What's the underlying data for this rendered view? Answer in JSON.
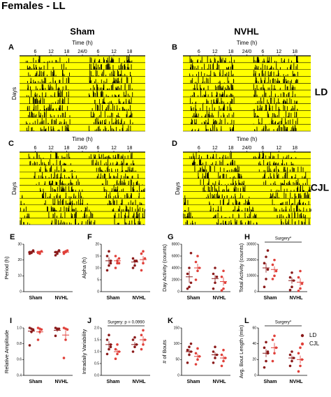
{
  "figure_title": "Females - LL",
  "columns": [
    "Sham",
    "NVHL"
  ],
  "rows": [
    "LD",
    "CJL"
  ],
  "actograms": [
    {
      "letter": "A",
      "xlabel": "Time (h)",
      "ylabel": "Days",
      "ticks": [
        "6",
        "12",
        "18",
        "24/0",
        "6",
        "12",
        "18"
      ]
    },
    {
      "letter": "B",
      "xlabel": "Time (h)",
      "ticks": [
        "6",
        "12",
        "18",
        "24/0",
        "6",
        "12",
        "18"
      ]
    },
    {
      "letter": "C",
      "xlabel": "Time (h)",
      "ylabel": "Days",
      "ticks": [
        "6",
        "12",
        "18",
        "24/0",
        "6",
        "12",
        "18"
      ]
    },
    {
      "letter": "D",
      "xlabel": "Time (h)",
      "ylabel": "Days",
      "ticks": [
        "6",
        "12",
        "18",
        "24/0",
        "6",
        "12",
        "18"
      ]
    }
  ],
  "chart_data": [
    {
      "type": "dot",
      "letter": "E",
      "ylabel": "Period (h)",
      "categories": [
        "Sham",
        "NVHL"
      ],
      "ylim": [
        0,
        30
      ],
      "yticks": [
        0,
        10,
        20,
        30
      ],
      "series": [
        {
          "name": "LD",
          "color": "#8b1a1a",
          "values": [
            25,
            25
          ],
          "errors": [
            0.5,
            0.6
          ],
          "points": [
            [
              24,
              25,
              26,
              25,
              24.5,
              25.5
            ],
            [
              23,
              25,
              26,
              25,
              24,
              26
            ]
          ]
        },
        {
          "name": "CJL",
          "color": "#e0403a",
          "values": [
            25,
            25
          ],
          "errors": [
            0.4,
            0.4
          ],
          "points": [
            [
              24.5,
              25,
              25.5,
              25,
              24
            ],
            [
              24,
              25,
              26,
              25,
              25.5
            ]
          ]
        }
      ]
    },
    {
      "type": "dot",
      "letter": "F",
      "ylabel": "Alpha (h)",
      "categories": [
        "Sham",
        "NVHL"
      ],
      "ylim": [
        0,
        20
      ],
      "yticks": [
        0,
        5,
        10,
        15,
        20
      ],
      "series": [
        {
          "name": "LD",
          "color": "#8b1a1a",
          "values": [
            13,
            12.5
          ],
          "errors": [
            1.5,
            1
          ],
          "points": [
            [
              9,
              11,
              13,
              15,
              17,
              12
            ],
            [
              10,
              11,
              13,
              14,
              13
            ]
          ]
        },
        {
          "name": "CJL",
          "color": "#e0403a",
          "values": [
            13,
            13.5
          ],
          "errors": [
            1,
            1.5
          ],
          "points": [
            [
              10,
              12,
              14,
              15,
              13,
              12
            ],
            [
              9,
              12,
              14,
              16,
              17
            ]
          ]
        }
      ]
    },
    {
      "type": "dot",
      "letter": "G",
      "ylabel": "Day Activity (counts)",
      "categories": [
        "Sham",
        "NVHL"
      ],
      "ylim": [
        0,
        8000
      ],
      "yticks": [
        0,
        2000,
        4000,
        6000,
        8000
      ],
      "series": [
        {
          "name": "LD",
          "color": "#8b1a1a",
          "values": [
            2500,
            2200
          ],
          "errors": [
            1000,
            600
          ],
          "points": [
            [
              500,
              800,
              1500,
              3000,
              4000,
              6500
            ],
            [
              500,
              1500,
              2500,
              3000,
              4000
            ]
          ]
        },
        {
          "name": "CJL",
          "color": "#e0403a",
          "values": [
            4000,
            1700
          ],
          "errors": [
            700,
            700
          ],
          "points": [
            [
              2000,
              3500,
              4000,
              5000,
              6000
            ],
            [
              200,
              500,
              1500,
              2500,
              3500
            ]
          ]
        }
      ]
    },
    {
      "type": "dot",
      "letter": "H",
      "ylabel": "Total Activity (counts)",
      "annotation": "Surgery*",
      "categories": [
        "Sham",
        "NVHL"
      ],
      "ylim": [
        0,
        30000
      ],
      "yticks": [
        0,
        10000,
        20000,
        30000
      ],
      "series": [
        {
          "name": "LD",
          "color": "#8b1a1a",
          "values": [
            15000,
            7000
          ],
          "errors": [
            3000,
            2000
          ],
          "points": [
            [
              3000,
              8000,
              14000,
              18000,
              22000,
              26000
            ],
            [
              1000,
              3000,
              7000,
              9000,
              12000
            ]
          ]
        },
        {
          "name": "CJL",
          "color": "#e0403a",
          "values": [
            14000,
            6000
          ],
          "errors": [
            2000,
            2500
          ],
          "points": [
            [
              8000,
              10000,
              13000,
              17000,
              20000
            ],
            [
              500,
              2000,
              5000,
              9000,
              13000
            ]
          ]
        }
      ]
    },
    {
      "type": "dot",
      "letter": "I",
      "ylabel": "Relative Amplitude",
      "categories": [
        "Sham",
        "NVHL"
      ],
      "ylim": [
        0.4,
        1
      ],
      "yticks": [
        0.4,
        0.6,
        0.8,
        {
          "value": 1,
          "label": "1.0"
        }
      ],
      "series": [
        {
          "name": "LD",
          "color": "#8b1a1a",
          "values": [
            0.96,
            0.97
          ],
          "errors": [
            0.03,
            0.02
          ],
          "points": [
            [
              0.78,
              0.95,
              0.98,
              1,
              0.99,
              0.97
            ],
            [
              0.9,
              0.98,
              0.99,
              1,
              0.99
            ]
          ]
        },
        {
          "name": "CJL",
          "color": "#e0403a",
          "values": [
            0.95,
            0.91
          ],
          "errors": [
            0.03,
            0.06
          ],
          "points": [
            [
              0.85,
              0.95,
              0.98,
              1,
              0.99
            ],
            [
              0.62,
              0.85,
              0.98,
              1,
              0.99
            ]
          ]
        }
      ]
    },
    {
      "type": "dot",
      "letter": "J",
      "ylabel": "Intradaily Variability",
      "annotation": "Surgery: p = 0.0990",
      "categories": [
        "Sham",
        "NVHL"
      ],
      "ylim": [
        0,
        2
      ],
      "yticks": [
        {
          "value": 0,
          "label": "0.0"
        },
        0.5,
        {
          "value": 1,
          "label": "1.0"
        },
        1.5,
        {
          "value": 2,
          "label": "2.0"
        }
      ],
      "series": [
        {
          "name": "LD",
          "color": "#8b1a1a",
          "values": [
            1.3,
            1.3
          ],
          "errors": [
            0.15,
            0.1
          ],
          "points": [
            [
              0.9,
              1.1,
              1.3,
              1.5,
              1.7,
              1.2
            ],
            [
              1.0,
              1.2,
              1.3,
              1.5,
              1.6
            ]
          ]
        },
        {
          "name": "CJL",
          "color": "#e0403a",
          "values": [
            1,
            1.5
          ],
          "errors": [
            0.1,
            0.15
          ],
          "points": [
            [
              0.7,
              0.9,
              1.0,
              1.1,
              1.3
            ],
            [
              1.1,
              1.3,
              1.5,
              1.7,
              1.9
            ]
          ]
        }
      ]
    },
    {
      "type": "dot",
      "letter": "K",
      "ylabel": "# of Bouts",
      "categories": [
        "Sham",
        "NVHL"
      ],
      "ylim": [
        0,
        150
      ],
      "yticks": [
        0,
        50,
        100,
        150
      ],
      "series": [
        {
          "name": "LD",
          "color": "#8b1a1a",
          "values": [
            75,
            65
          ],
          "errors": [
            8,
            8
          ],
          "points": [
            [
              40,
              65,
              75,
              80,
              90,
              100
            ],
            [
              40,
              55,
              65,
              75,
              90
            ]
          ]
        },
        {
          "name": "CJL",
          "color": "#e0403a",
          "values": [
            60,
            55
          ],
          "errors": [
            8,
            8
          ],
          "points": [
            [
              35,
              50,
              60,
              70,
              85
            ],
            [
              30,
              45,
              55,
              65,
              80
            ]
          ]
        }
      ]
    },
    {
      "type": "dot",
      "letter": "L",
      "ylabel": "Avg. Bout Length (min)",
      "annotation": "Surgery*",
      "categories": [
        "Sham",
        "NVHL"
      ],
      "ylim": [
        0,
        60
      ],
      "yticks": [
        0,
        20,
        40,
        60
      ],
      "series": [
        {
          "name": "LD",
          "color": "#8b1a1a",
          "values": [
            28,
            22
          ],
          "errors": [
            5,
            3
          ],
          "points": [
            [
              10,
              18,
              28,
              35,
              42,
              30
            ],
            [
              12,
              18,
              22,
              26,
              30
            ]
          ]
        },
        {
          "name": "CJL",
          "color": "#e0403a",
          "values": [
            35,
            20
          ],
          "errors": [
            6,
            5
          ],
          "points": [
            [
              18,
              28,
              35,
              45,
              50
            ],
            [
              5,
              12,
              20,
              28,
              35
            ]
          ]
        }
      ]
    }
  ]
}
